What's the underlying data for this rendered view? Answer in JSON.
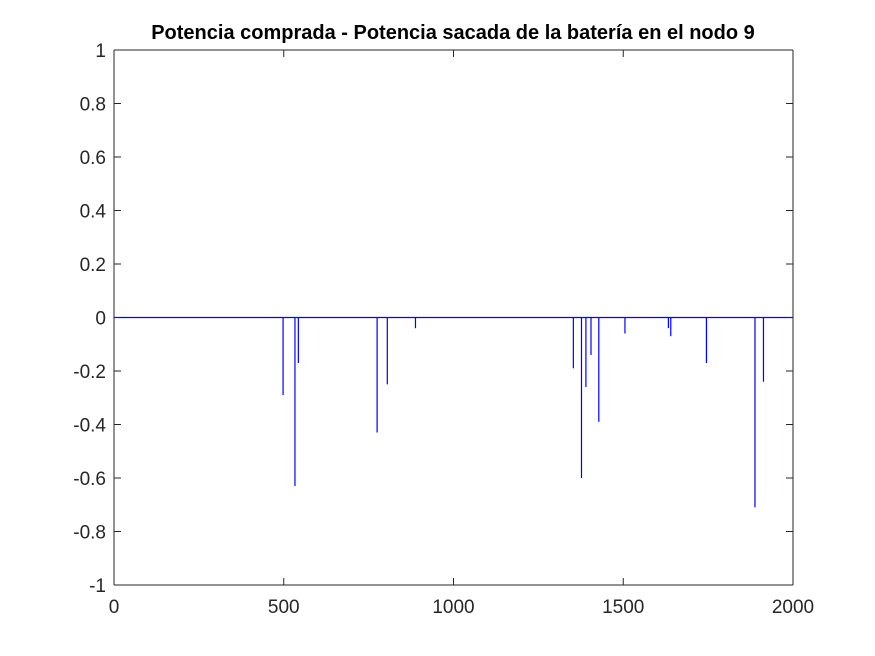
{
  "chart_data": {
    "type": "line",
    "title": "Potencia comprada - Potencia sacada de la batería en el nodo 9",
    "xlabel": "",
    "ylabel": "",
    "xlim": [
      0,
      2000
    ],
    "ylim": [
      -1,
      1
    ],
    "xticks": [
      0,
      500,
      1000,
      1500,
      2000
    ],
    "yticks": [
      -1,
      -0.8,
      -0.6,
      -0.4,
      -0.2,
      0,
      0.2,
      0.4,
      0.6,
      0.8,
      1
    ],
    "xtick_labels": [
      "0",
      "500",
      "1000",
      "1500",
      "2000"
    ],
    "ytick_labels": [
      "-1",
      "-0.8",
      "-0.6",
      "-0.4",
      "-0.2",
      "0",
      "0.2",
      "0.4",
      "0.6",
      "0.8",
      "1"
    ],
    "grid": false,
    "legend": "none",
    "line_color": "#0000ff",
    "series": [
      {
        "baseline": 0,
        "spikes": [
          {
            "x": 498,
            "y": -0.29
          },
          {
            "x": 533,
            "y": -0.63
          },
          {
            "x": 543,
            "y": -0.17
          },
          {
            "x": 775,
            "y": -0.43
          },
          {
            "x": 805,
            "y": -0.25
          },
          {
            "x": 888,
            "y": -0.04
          },
          {
            "x": 1353,
            "y": -0.19
          },
          {
            "x": 1377,
            "y": -0.6
          },
          {
            "x": 1390,
            "y": -0.26
          },
          {
            "x": 1405,
            "y": -0.14
          },
          {
            "x": 1428,
            "y": -0.39
          },
          {
            "x": 1505,
            "y": -0.06
          },
          {
            "x": 1633,
            "y": -0.04
          },
          {
            "x": 1640,
            "y": -0.07
          },
          {
            "x": 1745,
            "y": -0.17
          },
          {
            "x": 1888,
            "y": -0.71
          },
          {
            "x": 1913,
            "y": -0.24
          }
        ]
      }
    ]
  }
}
